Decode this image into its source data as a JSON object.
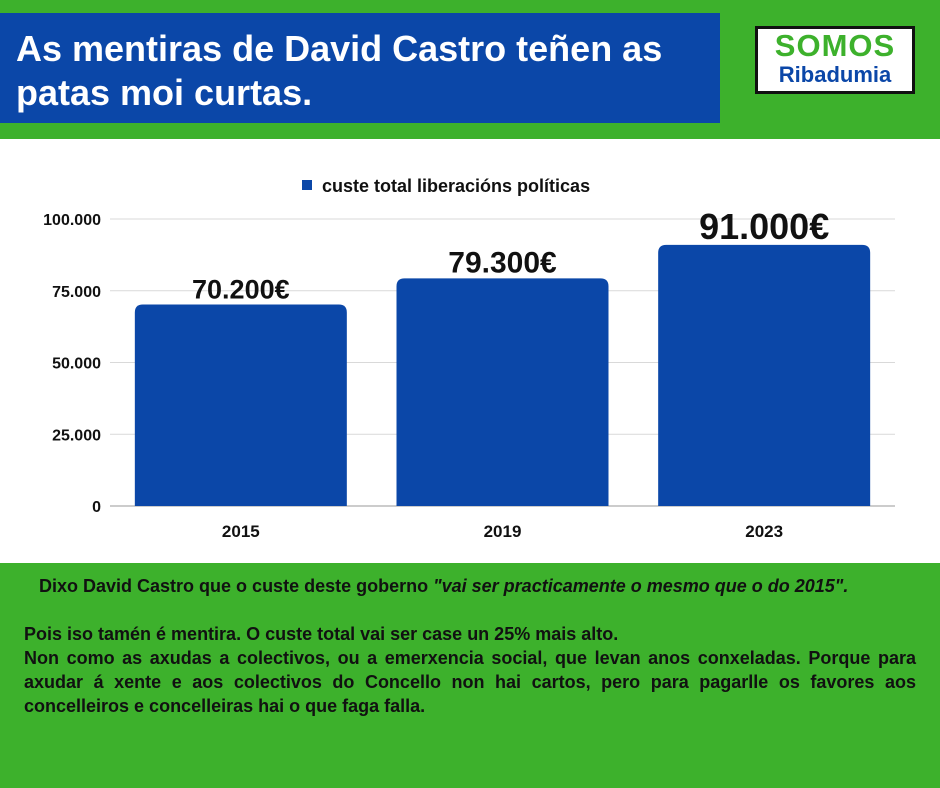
{
  "header": {
    "title": "As mentiras de David Castro teñen as patas moi curtas.",
    "logo_line1": "SOMOS",
    "logo_line2": "Ribadumia"
  },
  "colors": {
    "background_green": "#3db12c",
    "title_blue": "#0b47a8",
    "bar_blue": "#0b47a8"
  },
  "chart_data": {
    "type": "bar",
    "categories": [
      "2015",
      "2019",
      "2023"
    ],
    "series": [
      {
        "name": "custe total liberacións políticas",
        "values": [
          70200,
          79300,
          91000
        ]
      }
    ],
    "data_labels": [
      "70.200€",
      "79.300€",
      "91.000€"
    ],
    "ylim": [
      0,
      100000
    ],
    "yticks": [
      0,
      25000,
      50000,
      75000,
      100000
    ],
    "ytick_labels": [
      "0",
      "25.000",
      "50.000",
      "75.000",
      "100.000"
    ],
    "legend_position": "top-center",
    "grid": true
  },
  "text": {
    "para1_start": "Dixo David Castro que o custe deste goberno ",
    "para1_quote": "\"vai ser practicamente o mesmo que o do 2015\".",
    "para2": "Pois  iso tamén é mentira. O custe total vai ser case un 25% mais alto.",
    "para3": "Non como as axudas a colectivos, ou a emerxencia social, que levan anos conxeladas. Porque para axudar á xente e aos colectivos do Concello non hai cartos, pero para pagarlle os favores aos concelleiros e concelleiras hai o que faga falla."
  }
}
